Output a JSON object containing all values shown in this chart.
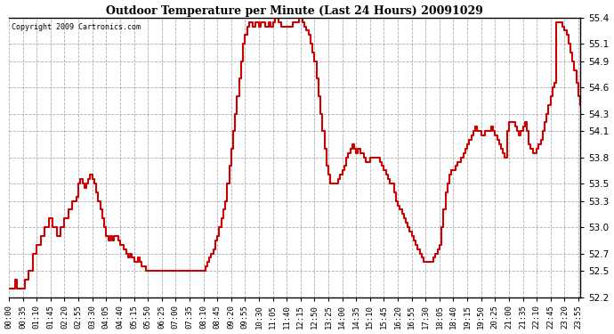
{
  "title": "Outdoor Temperature per Minute (Last 24 Hours) 20091029",
  "copyright": "Copyright 2009 Cartronics.com",
  "line_color": "#cc0000",
  "bg_color": "#ffffff",
  "grid_color": "#999999",
  "ylim": [
    52.2,
    55.4
  ],
  "yticks": [
    52.2,
    52.5,
    52.7,
    53.0,
    53.3,
    53.5,
    53.8,
    54.1,
    54.3,
    54.6,
    54.9,
    55.1,
    55.4
  ],
  "xtick_interval_minutes": 35,
  "total_minutes": 1440,
  "data_points": [
    [
      0,
      52.3
    ],
    [
      10,
      52.3
    ],
    [
      15,
      52.4
    ],
    [
      20,
      52.3
    ],
    [
      30,
      52.3
    ],
    [
      40,
      52.4
    ],
    [
      50,
      52.5
    ],
    [
      60,
      52.7
    ],
    [
      70,
      52.8
    ],
    [
      80,
      52.9
    ],
    [
      90,
      53.0
    ],
    [
      100,
      53.1
    ],
    [
      110,
      53.0
    ],
    [
      120,
      52.9
    ],
    [
      130,
      53.0
    ],
    [
      140,
      53.1
    ],
    [
      150,
      53.2
    ],
    [
      160,
      53.3
    ],
    [
      170,
      53.35
    ],
    [
      175,
      53.5
    ],
    [
      180,
      53.55
    ],
    [
      185,
      53.5
    ],
    [
      190,
      53.45
    ],
    [
      195,
      53.5
    ],
    [
      200,
      53.55
    ],
    [
      205,
      53.6
    ],
    [
      210,
      53.55
    ],
    [
      215,
      53.5
    ],
    [
      220,
      53.4
    ],
    [
      225,
      53.3
    ],
    [
      230,
      53.2
    ],
    [
      235,
      53.1
    ],
    [
      240,
      53.0
    ],
    [
      245,
      52.9
    ],
    [
      250,
      52.85
    ],
    [
      255,
      52.9
    ],
    [
      260,
      52.85
    ],
    [
      265,
      52.9
    ],
    [
      270,
      52.9
    ],
    [
      275,
      52.85
    ],
    [
      280,
      52.8
    ],
    [
      285,
      52.8
    ],
    [
      290,
      52.75
    ],
    [
      295,
      52.7
    ],
    [
      300,
      52.65
    ],
    [
      305,
      52.7
    ],
    [
      310,
      52.65
    ],
    [
      315,
      52.6
    ],
    [
      320,
      52.6
    ],
    [
      325,
      52.65
    ],
    [
      330,
      52.6
    ],
    [
      335,
      52.55
    ],
    [
      340,
      52.55
    ],
    [
      345,
      52.5
    ],
    [
      350,
      52.5
    ],
    [
      355,
      52.5
    ],
    [
      360,
      52.5
    ],
    [
      365,
      52.5
    ],
    [
      370,
      52.5
    ],
    [
      375,
      52.5
    ],
    [
      380,
      52.5
    ],
    [
      385,
      52.5
    ],
    [
      390,
      52.5
    ],
    [
      395,
      52.5
    ],
    [
      400,
      52.5
    ],
    [
      405,
      52.5
    ],
    [
      410,
      52.5
    ],
    [
      415,
      52.5
    ],
    [
      420,
      52.5
    ],
    [
      425,
      52.5
    ],
    [
      430,
      52.5
    ],
    [
      435,
      52.5
    ],
    [
      440,
      52.5
    ],
    [
      445,
      52.5
    ],
    [
      450,
      52.5
    ],
    [
      455,
      52.5
    ],
    [
      460,
      52.5
    ],
    [
      465,
      52.5
    ],
    [
      470,
      52.5
    ],
    [
      475,
      52.5
    ],
    [
      480,
      52.5
    ],
    [
      485,
      52.5
    ],
    [
      490,
      52.5
    ],
    [
      495,
      52.55
    ],
    [
      500,
      52.6
    ],
    [
      505,
      52.65
    ],
    [
      510,
      52.7
    ],
    [
      515,
      52.75
    ],
    [
      520,
      52.85
    ],
    [
      525,
      52.9
    ],
    [
      530,
      53.0
    ],
    [
      535,
      53.1
    ],
    [
      540,
      53.2
    ],
    [
      545,
      53.3
    ],
    [
      550,
      53.5
    ],
    [
      555,
      53.7
    ],
    [
      560,
      53.9
    ],
    [
      565,
      54.1
    ],
    [
      570,
      54.3
    ],
    [
      575,
      54.5
    ],
    [
      580,
      54.7
    ],
    [
      585,
      54.9
    ],
    [
      590,
      55.1
    ],
    [
      595,
      55.2
    ],
    [
      600,
      55.3
    ],
    [
      605,
      55.35
    ],
    [
      610,
      55.35
    ],
    [
      615,
      55.3
    ],
    [
      620,
      55.35
    ],
    [
      625,
      55.35
    ],
    [
      630,
      55.3
    ],
    [
      635,
      55.35
    ],
    [
      640,
      55.35
    ],
    [
      645,
      55.3
    ],
    [
      650,
      55.3
    ],
    [
      655,
      55.35
    ],
    [
      660,
      55.3
    ],
    [
      665,
      55.35
    ],
    [
      670,
      55.4
    ],
    [
      675,
      55.4
    ],
    [
      680,
      55.35
    ],
    [
      685,
      55.3
    ],
    [
      690,
      55.3
    ],
    [
      695,
      55.3
    ],
    [
      700,
      55.3
    ],
    [
      705,
      55.3
    ],
    [
      710,
      55.3
    ],
    [
      715,
      55.35
    ],
    [
      720,
      55.35
    ],
    [
      725,
      55.35
    ],
    [
      730,
      55.4
    ],
    [
      735,
      55.4
    ],
    [
      740,
      55.35
    ],
    [
      745,
      55.3
    ],
    [
      750,
      55.25
    ],
    [
      755,
      55.2
    ],
    [
      760,
      55.1
    ],
    [
      765,
      55.0
    ],
    [
      770,
      54.9
    ],
    [
      775,
      54.7
    ],
    [
      780,
      54.5
    ],
    [
      785,
      54.3
    ],
    [
      790,
      54.1
    ],
    [
      795,
      53.9
    ],
    [
      800,
      53.7
    ],
    [
      805,
      53.6
    ],
    [
      810,
      53.5
    ],
    [
      815,
      53.5
    ],
    [
      820,
      53.5
    ],
    [
      825,
      53.5
    ],
    [
      830,
      53.55
    ],
    [
      835,
      53.6
    ],
    [
      840,
      53.65
    ],
    [
      845,
      53.7
    ],
    [
      850,
      53.8
    ],
    [
      855,
      53.85
    ],
    [
      860,
      53.9
    ],
    [
      865,
      53.95
    ],
    [
      870,
      53.9
    ],
    [
      875,
      53.85
    ],
    [
      880,
      53.9
    ],
    [
      885,
      53.85
    ],
    [
      890,
      53.85
    ],
    [
      895,
      53.8
    ],
    [
      900,
      53.75
    ],
    [
      905,
      53.75
    ],
    [
      910,
      53.8
    ],
    [
      915,
      53.8
    ],
    [
      920,
      53.8
    ],
    [
      925,
      53.8
    ],
    [
      930,
      53.8
    ],
    [
      935,
      53.75
    ],
    [
      940,
      53.7
    ],
    [
      945,
      53.65
    ],
    [
      950,
      53.6
    ],
    [
      955,
      53.55
    ],
    [
      960,
      53.5
    ],
    [
      965,
      53.5
    ],
    [
      970,
      53.4
    ],
    [
      975,
      53.3
    ],
    [
      980,
      53.25
    ],
    [
      985,
      53.2
    ],
    [
      990,
      53.15
    ],
    [
      995,
      53.1
    ],
    [
      1000,
      53.05
    ],
    [
      1005,
      53.0
    ],
    [
      1010,
      52.95
    ],
    [
      1015,
      52.9
    ],
    [
      1020,
      52.85
    ],
    [
      1025,
      52.8
    ],
    [
      1030,
      52.75
    ],
    [
      1035,
      52.7
    ],
    [
      1040,
      52.65
    ],
    [
      1045,
      52.6
    ],
    [
      1050,
      52.6
    ],
    [
      1055,
      52.6
    ],
    [
      1060,
      52.6
    ],
    [
      1065,
      52.6
    ],
    [
      1070,
      52.65
    ],
    [
      1075,
      52.7
    ],
    [
      1080,
      52.75
    ],
    [
      1085,
      52.8
    ],
    [
      1090,
      53.0
    ],
    [
      1095,
      53.2
    ],
    [
      1100,
      53.4
    ],
    [
      1105,
      53.5
    ],
    [
      1110,
      53.6
    ],
    [
      1115,
      53.65
    ],
    [
      1120,
      53.65
    ],
    [
      1125,
      53.7
    ],
    [
      1130,
      53.75
    ],
    [
      1135,
      53.75
    ],
    [
      1140,
      53.8
    ],
    [
      1145,
      53.85
    ],
    [
      1150,
      53.9
    ],
    [
      1155,
      53.95
    ],
    [
      1160,
      54.0
    ],
    [
      1165,
      54.05
    ],
    [
      1170,
      54.1
    ],
    [
      1175,
      54.15
    ],
    [
      1180,
      54.1
    ],
    [
      1185,
      54.1
    ],
    [
      1190,
      54.05
    ],
    [
      1195,
      54.05
    ],
    [
      1200,
      54.1
    ],
    [
      1205,
      54.1
    ],
    [
      1210,
      54.1
    ],
    [
      1215,
      54.15
    ],
    [
      1220,
      54.1
    ],
    [
      1225,
      54.05
    ],
    [
      1230,
      54.0
    ],
    [
      1235,
      53.95
    ],
    [
      1240,
      53.9
    ],
    [
      1245,
      53.85
    ],
    [
      1250,
      53.8
    ],
    [
      1255,
      54.1
    ],
    [
      1260,
      54.2
    ],
    [
      1265,
      54.2
    ],
    [
      1270,
      54.2
    ],
    [
      1275,
      54.15
    ],
    [
      1280,
      54.1
    ],
    [
      1285,
      54.05
    ],
    [
      1290,
      54.1
    ],
    [
      1295,
      54.15
    ],
    [
      1300,
      54.2
    ],
    [
      1305,
      54.1
    ],
    [
      1310,
      53.95
    ],
    [
      1315,
      53.9
    ],
    [
      1320,
      53.85
    ],
    [
      1325,
      53.85
    ],
    [
      1330,
      53.9
    ],
    [
      1335,
      53.95
    ],
    [
      1340,
      54.0
    ],
    [
      1345,
      54.1
    ],
    [
      1350,
      54.2
    ],
    [
      1355,
      54.3
    ],
    [
      1360,
      54.4
    ],
    [
      1365,
      54.5
    ],
    [
      1370,
      54.6
    ],
    [
      1375,
      54.65
    ],
    [
      1378,
      55.3
    ],
    [
      1380,
      55.35
    ],
    [
      1385,
      55.35
    ],
    [
      1390,
      55.35
    ],
    [
      1395,
      55.3
    ],
    [
      1400,
      55.25
    ],
    [
      1405,
      55.2
    ],
    [
      1410,
      55.1
    ],
    [
      1415,
      55.0
    ],
    [
      1420,
      54.9
    ],
    [
      1425,
      54.8
    ],
    [
      1430,
      54.65
    ],
    [
      1435,
      54.5
    ],
    [
      1440,
      54.4
    ]
  ]
}
